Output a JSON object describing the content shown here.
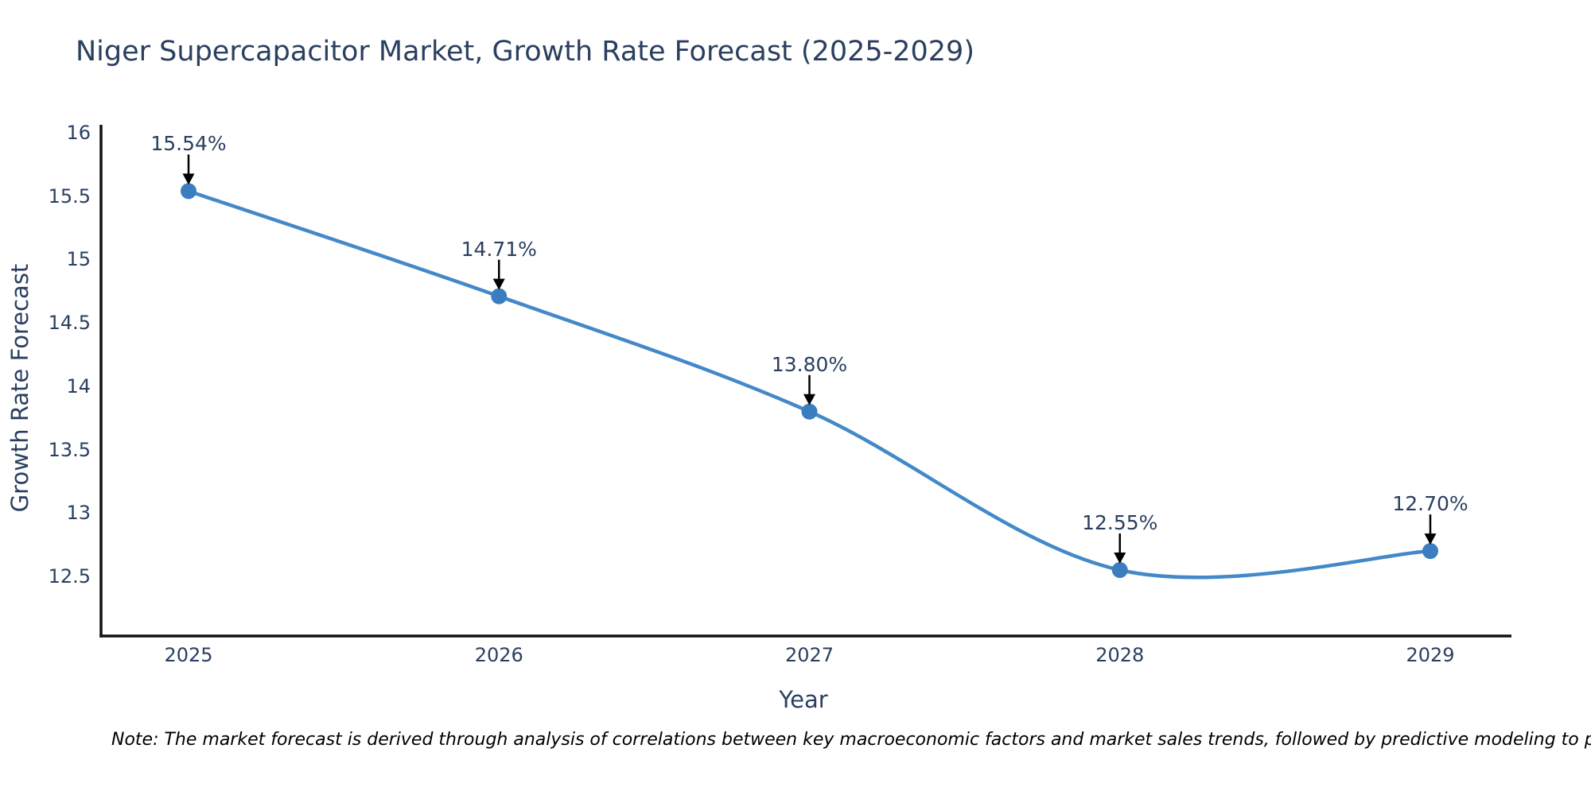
{
  "title": "Niger Supercapacitor Market, Growth Rate Forecast (2025-2029)",
  "note": "Note: The market forecast is derived through analysis of correlations between key macroeconomic factors and market sales trends, followed by predictive modeling to project future sal",
  "chart_data": {
    "type": "line",
    "title": "Niger Supercapacitor Market, Growth Rate Forecast (2025-2029)",
    "xlabel": "Year",
    "ylabel": "Growth Rate Forecast",
    "categories": [
      "2025",
      "2026",
      "2027",
      "2028",
      "2029"
    ],
    "values": [
      15.54,
      14.71,
      13.8,
      12.55,
      12.7
    ],
    "point_labels": [
      "15.54%",
      "14.71%",
      "13.80%",
      "12.55%",
      "12.70%"
    ],
    "series_name": "Growth Rate Forecast",
    "yticks": [
      "16",
      "15.5",
      "15",
      "14.5",
      "14",
      "13.5",
      "13",
      "12.5"
    ],
    "ytick_values": [
      16,
      15.5,
      15,
      14.5,
      14,
      13.5,
      13,
      12.5
    ],
    "ylim": [
      12.03,
      16.07
    ],
    "line_shape": "spline",
    "grid": false,
    "legend": "none",
    "colors": {
      "line": "#4389c8",
      "marker": "#3a7ebf",
      "text": "#2a3f5f",
      "axis": "#111111",
      "arrow": "#000000"
    }
  }
}
